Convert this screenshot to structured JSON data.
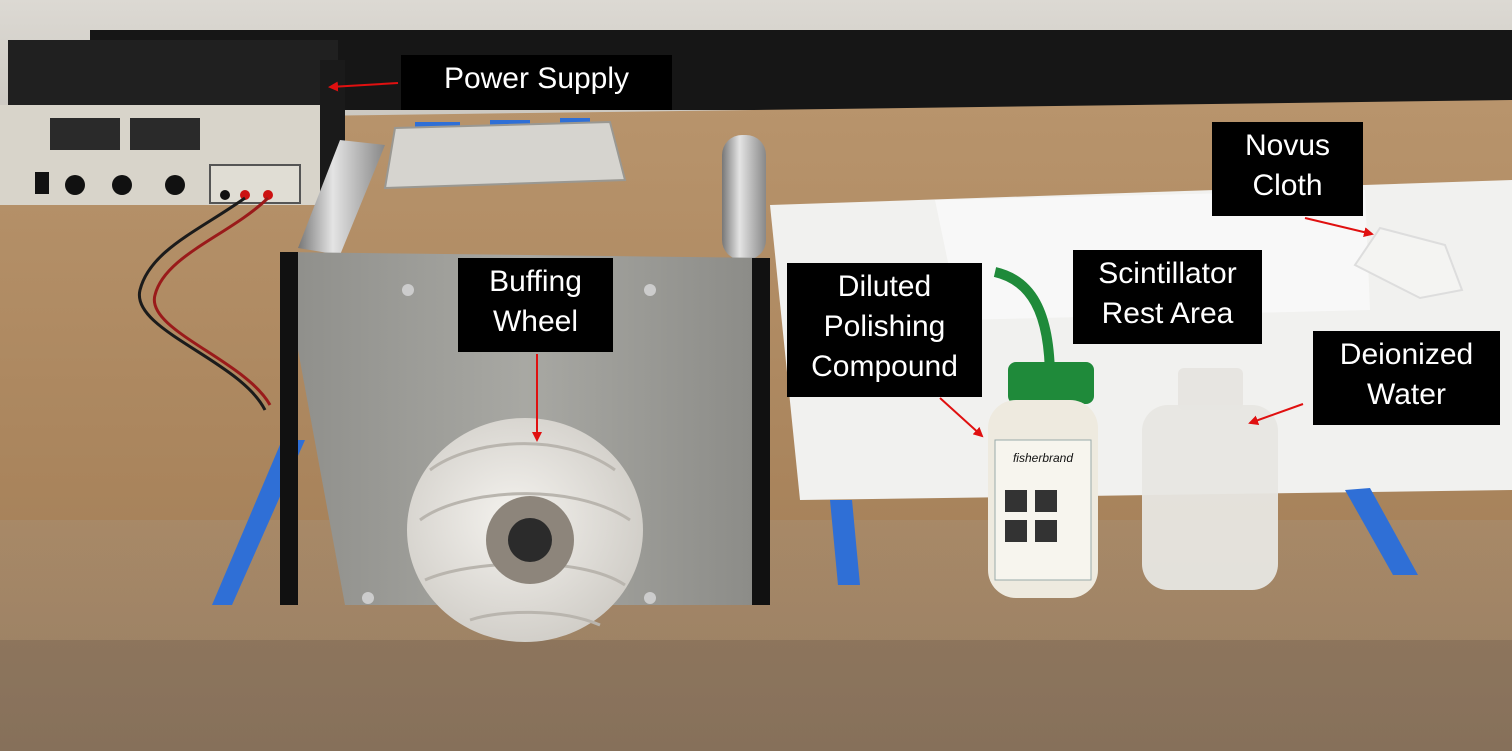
{
  "labels": {
    "power_supply": [
      "Power  Supply"
    ],
    "buffing_wheel": [
      "Buffing",
      "Wheel"
    ],
    "polishing_compound": [
      "Diluted",
      "Polishing",
      "Compound"
    ],
    "rest_area": [
      "Scintillator",
      "Rest Area"
    ],
    "novus_cloth": [
      "Novus",
      "Cloth"
    ],
    "deionized_water": [
      "Deionized",
      "Water"
    ]
  },
  "bottle_brand": "fisherbrand",
  "colors": {
    "label_background": "#000000",
    "label_text": "#ffffff",
    "arrow": "#e01010",
    "table": "#b08a62",
    "tape": "#2f6fd6",
    "bottle_cap": "#1f8a3a"
  }
}
